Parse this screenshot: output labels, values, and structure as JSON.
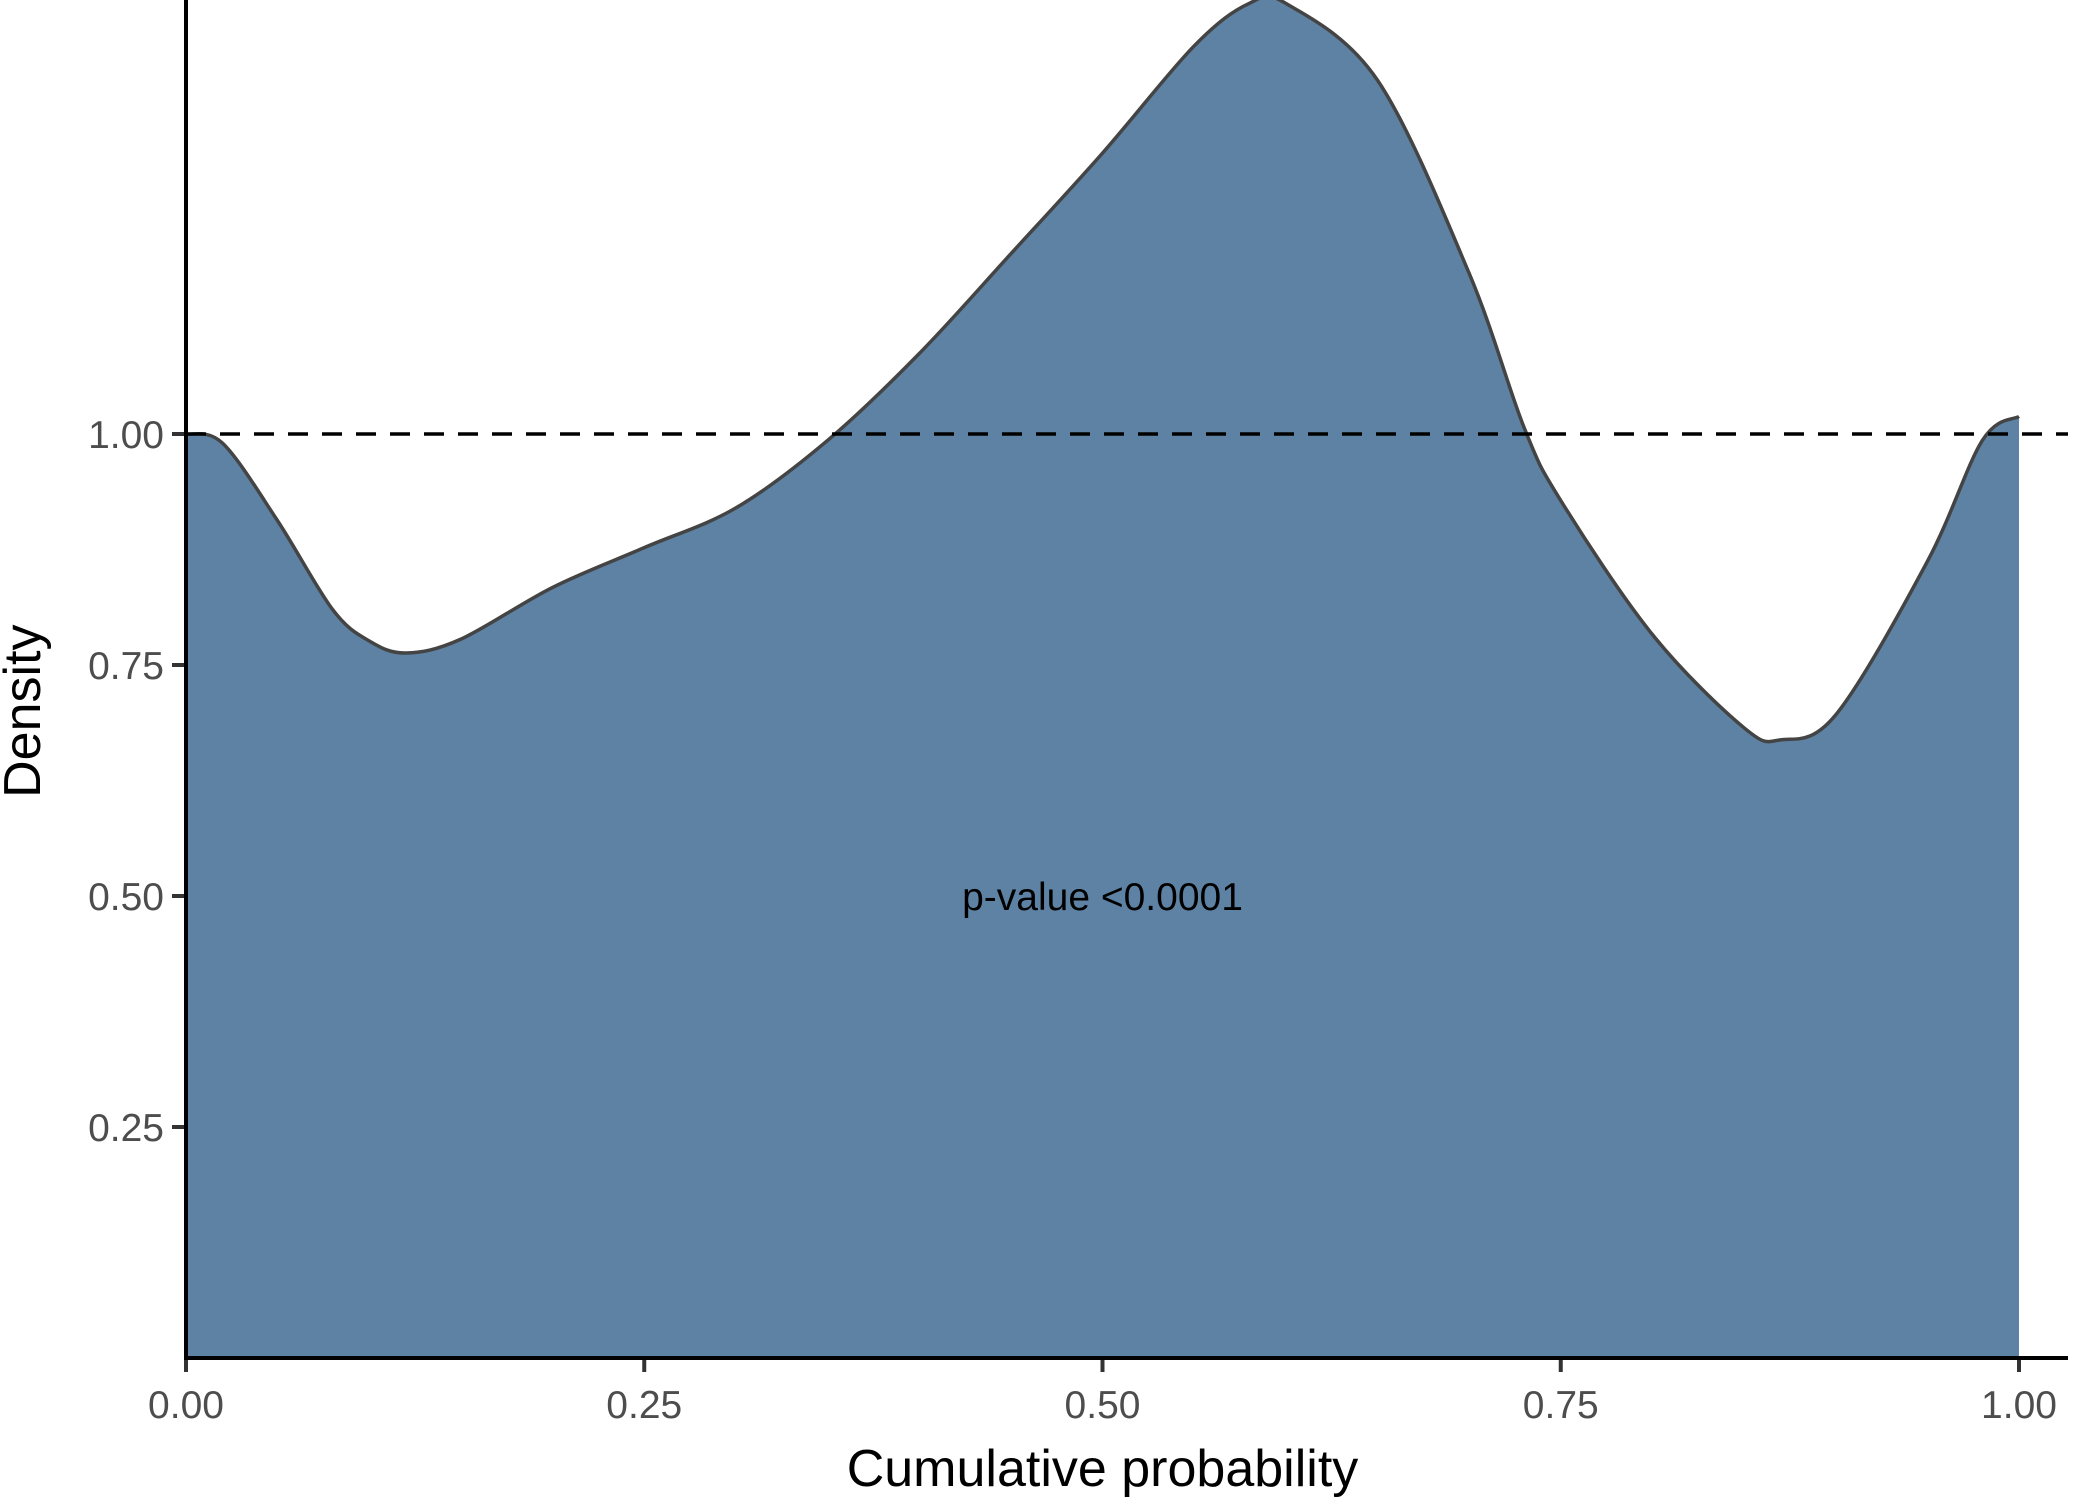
{
  "chart_data": {
    "type": "area",
    "title": "",
    "xlabel": "Cumulative probability",
    "ylabel": "Density",
    "xlim": [
      0,
      1
    ],
    "ylim": [
      0,
      1.47
    ],
    "x_ticks": [
      "0.00",
      "0.25",
      "0.50",
      "0.75",
      "1.00"
    ],
    "y_ticks": [
      "0.25",
      "0.50",
      "0.75",
      "1.00"
    ],
    "grid": false,
    "reference_line": {
      "y": 1.0,
      "style": "dashed"
    },
    "annotation": {
      "text": "p-value <0.0001",
      "x": 0.5,
      "y": 0.5
    },
    "fill_color": "#5E82A3",
    "line_color": "#444444",
    "x": [
      0,
      0.02,
      0.05,
      0.08,
      0.1,
      0.12,
      0.15,
      0.2,
      0.25,
      0.3,
      0.35,
      0.4,
      0.45,
      0.5,
      0.55,
      0.58,
      0.6,
      0.65,
      0.7,
      0.73,
      0.75,
      0.8,
      0.85,
      0.87,
      0.9,
      0.95,
      0.98,
      1.0
    ],
    "y": [
      1.0,
      0.99,
      0.906,
      0.81,
      0.776,
      0.763,
      0.778,
      0.834,
      0.877,
      0.92,
      0.993,
      1.087,
      1.195,
      1.304,
      1.42,
      1.466,
      1.466,
      1.383,
      1.174,
      1.007,
      0.928,
      0.783,
      0.682,
      0.669,
      0.696,
      0.862,
      0.993,
      1.019
    ]
  }
}
